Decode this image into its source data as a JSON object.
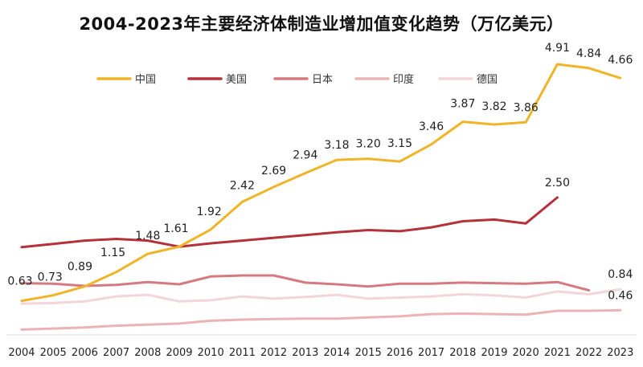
{
  "chart_data": {
    "type": "line",
    "title": "2004-2023年主要经济体制造业增加值变化趋势（万亿美元）",
    "xlabel": "",
    "ylabel": "",
    "ylim": [
      0,
      5.2
    ],
    "grid": false,
    "legend_position": "top",
    "categories": [
      "2004",
      "2005",
      "2006",
      "2007",
      "2008",
      "2009",
      "2010",
      "2011",
      "2012",
      "2013",
      "2014",
      "2015",
      "2016",
      "2017",
      "2018",
      "2019",
      "2020",
      "2021",
      "2022",
      "2023"
    ],
    "series": [
      {
        "name": "中国",
        "color": "#F0B429",
        "values": [
          0.63,
          0.73,
          0.89,
          1.15,
          1.48,
          1.61,
          1.92,
          2.42,
          2.69,
          2.94,
          3.18,
          3.2,
          3.15,
          3.46,
          3.87,
          3.82,
          3.86,
          4.91,
          4.84,
          4.66
        ],
        "labels": [
          "0.63",
          "0.73",
          "0.89",
          "1.15",
          "1.48",
          "1.61",
          "1.92",
          "2.42",
          "2.69",
          "2.94",
          "3.18",
          "3.20",
          "3.15",
          "3.46",
          "3.87",
          "3.82",
          "3.86",
          "4.91",
          "4.84",
          "4.66"
        ]
      },
      {
        "name": "美国",
        "color": "#B5323A",
        "values": [
          1.6,
          1.66,
          1.72,
          1.75,
          1.72,
          1.61,
          1.67,
          1.72,
          1.77,
          1.82,
          1.87,
          1.91,
          1.89,
          1.96,
          2.07,
          2.1,
          2.03,
          2.5,
          null,
          null
        ],
        "labels": [
          "",
          "",
          "",
          "",
          "",
          "",
          "",
          "",
          "",
          "",
          "",
          "",
          "",
          "",
          "",
          "",
          "",
          "2.50",
          "",
          ""
        ]
      },
      {
        "name": "日本",
        "color": "#D47A80",
        "values": [
          0.95,
          0.94,
          0.9,
          0.92,
          0.97,
          0.93,
          1.07,
          1.09,
          1.09,
          0.96,
          0.93,
          0.89,
          0.94,
          0.94,
          0.96,
          0.95,
          0.94,
          0.97,
          0.82,
          null
        ],
        "labels": [
          "",
          "",
          "",
          "",
          "",
          "",
          "",
          "",
          "",
          "",
          "",
          "",
          "",
          "",
          "",
          "",
          "",
          "",
          "",
          ""
        ]
      },
      {
        "name": "印度",
        "color": "#EBB3B6",
        "values": [
          0.11,
          0.13,
          0.15,
          0.18,
          0.2,
          0.22,
          0.27,
          0.29,
          0.3,
          0.31,
          0.31,
          0.33,
          0.35,
          0.39,
          0.4,
          0.39,
          0.38,
          0.45,
          0.45,
          0.46
        ],
        "labels": [
          "",
          "",
          "",
          "",
          "",
          "",
          "",
          "",
          "",
          "",
          "",
          "",
          "",
          "",
          "",
          "",
          "",
          "",
          "",
          "0.46"
        ]
      },
      {
        "name": "德国",
        "color": "#F2D6DA",
        "values": [
          0.58,
          0.59,
          0.62,
          0.71,
          0.74,
          0.62,
          0.64,
          0.71,
          0.67,
          0.7,
          0.74,
          0.67,
          0.69,
          0.71,
          0.75,
          0.73,
          0.69,
          0.8,
          0.75,
          0.84
        ],
        "labels": [
          "",
          "",
          "",
          "",
          "",
          "",
          "",
          "",
          "",
          "",
          "",
          "",
          "",
          "",
          "",
          "",
          "",
          "",
          "",
          "0.84"
        ]
      }
    ]
  }
}
